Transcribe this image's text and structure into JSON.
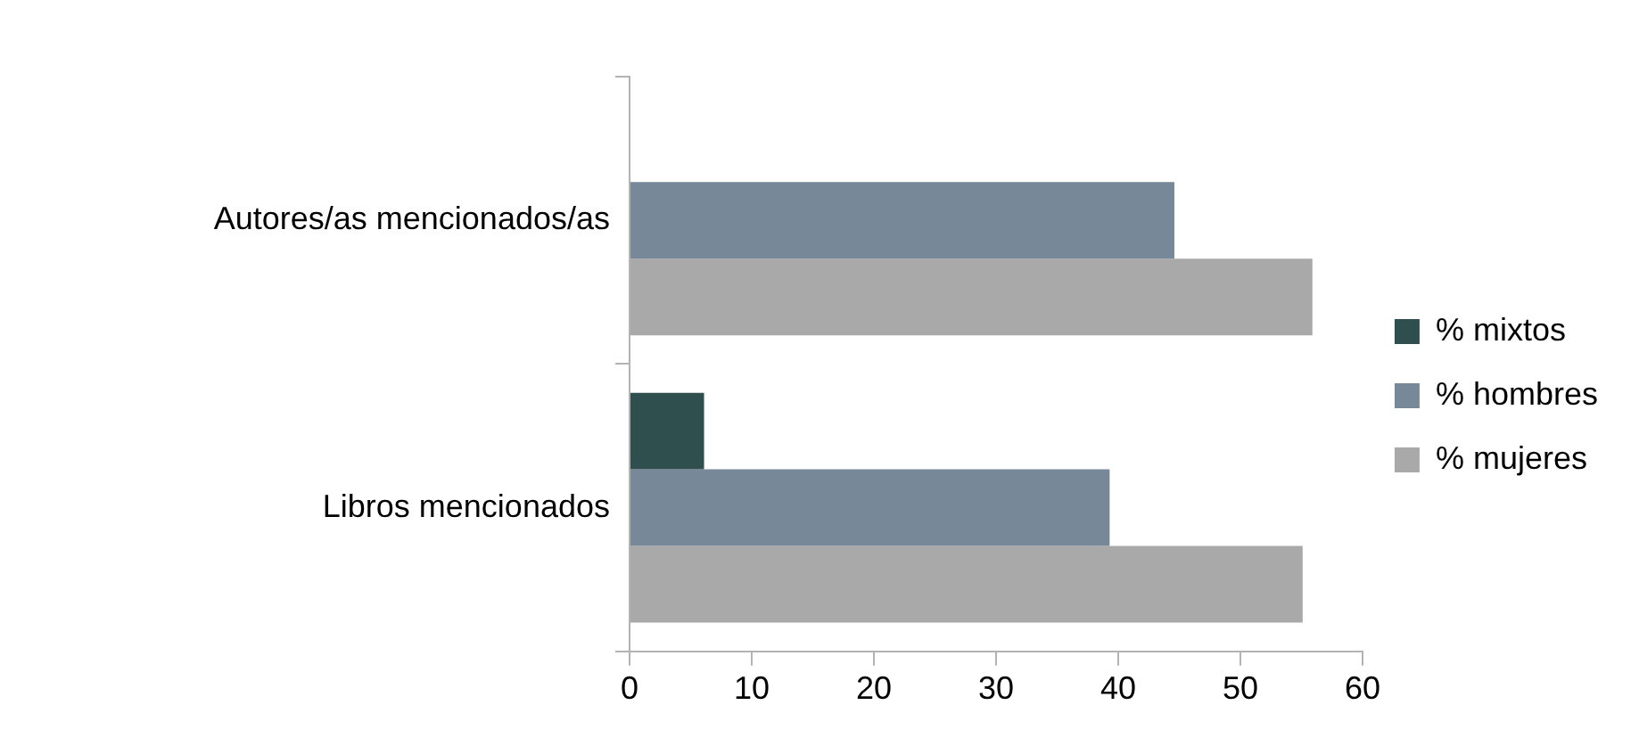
{
  "chart_data": {
    "type": "bar",
    "orientation": "horizontal",
    "categories": [
      "Autores/as mencionados/as",
      "Libros mencionados"
    ],
    "series": [
      {
        "name": "% mixtos",
        "color": "#2f4f4f",
        "values": [
          0,
          6.1
        ]
      },
      {
        "name": "% hombres",
        "color": "#778899",
        "values": [
          44.6,
          39.3
        ]
      },
      {
        "name": "% mujeres",
        "color": "#a9a9a9",
        "values": [
          55.9,
          55.1
        ]
      }
    ],
    "xlim": [
      0,
      60
    ],
    "xticks": [
      0,
      10,
      20,
      30,
      40,
      50,
      60
    ],
    "grid": false,
    "legend": "right"
  }
}
